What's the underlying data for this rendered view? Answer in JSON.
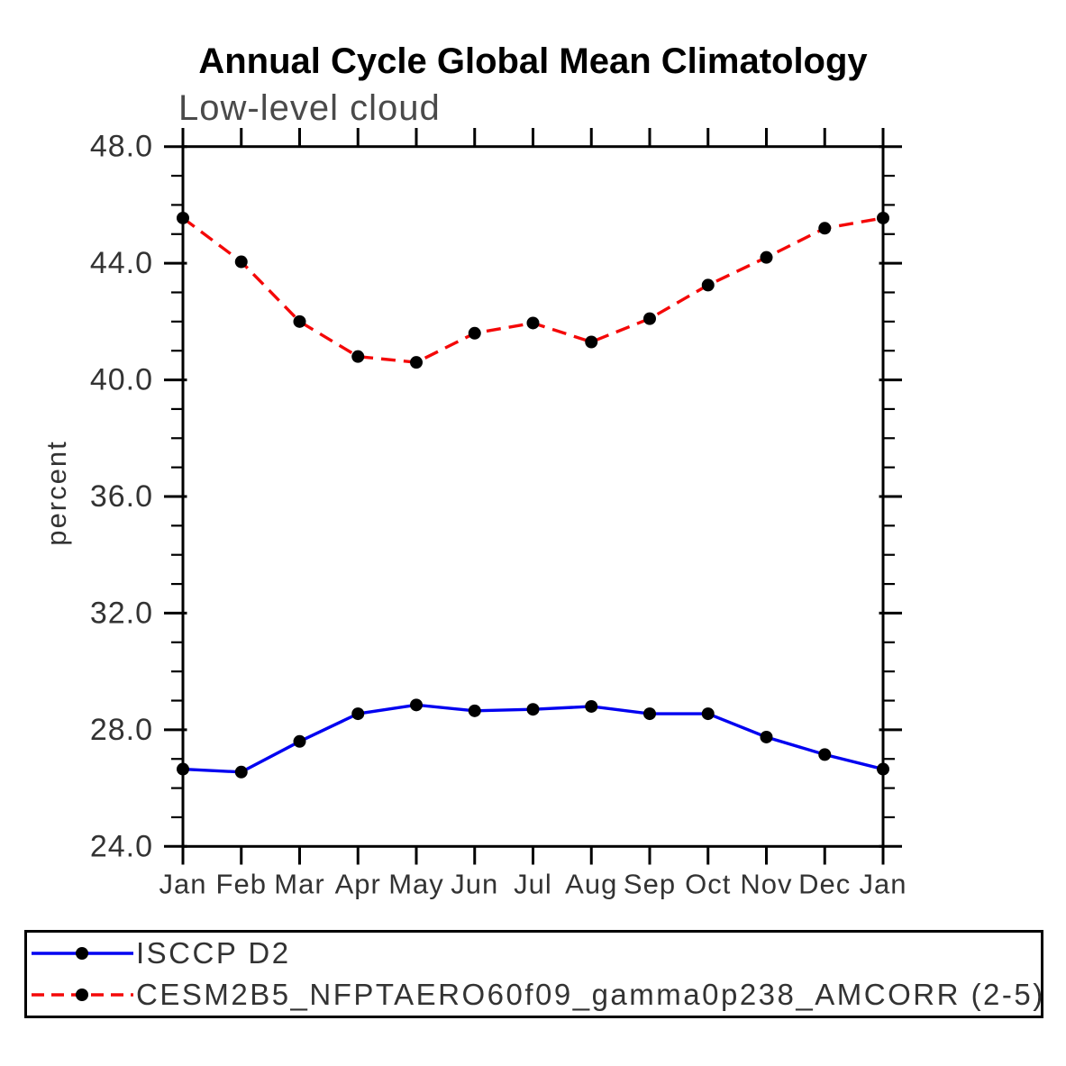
{
  "title": "Annual Cycle Global Mean Climatology",
  "subtitle": "Low-level cloud",
  "ylabel": "percent",
  "legend": {
    "position": "bottom-box",
    "entries": [
      {
        "label": "ISCCP D2",
        "line_color": "#0000f0",
        "line_style": "solid",
        "marker": "black-dot"
      },
      {
        "label": "CESM2B5_NFPTAERO60f09_gamma0p238_AMCORR (2-5)",
        "line_color": "#f40808",
        "line_style": "dashed",
        "marker": "black-dot"
      }
    ]
  },
  "chart_data": {
    "type": "line",
    "title": "Annual Cycle Global Mean Climatology",
    "subtitle": "Low-level cloud",
    "xlabel": "",
    "ylabel": "percent",
    "categories": [
      "Jan",
      "Feb",
      "Mar",
      "Apr",
      "May",
      "Jun",
      "Jul",
      "Aug",
      "Sep",
      "Oct",
      "Nov",
      "Dec",
      "Jan"
    ],
    "series": [
      {
        "name": "ISCCP D2",
        "color": "#0000f0",
        "style": "solid",
        "marker_color": "#000000",
        "values": [
          26.65,
          26.55,
          27.6,
          28.55,
          28.85,
          28.65,
          28.7,
          28.8,
          28.55,
          28.55,
          27.75,
          27.15,
          26.65
        ]
      },
      {
        "name": "CESM2B5_NFPTAERO60f09_gamma0p238_AMCORR (2-5)",
        "color": "#f40808",
        "style": "dashed",
        "marker_color": "#000000",
        "values": [
          45.55,
          44.05,
          42.0,
          40.8,
          40.6,
          41.6,
          41.95,
          41.3,
          42.1,
          43.25,
          44.2,
          45.2,
          45.55
        ]
      }
    ],
    "ylim": [
      24.0,
      48.0
    ],
    "ytick_major_interval": 4.0,
    "ytick_minor_interval": 1.0,
    "ytick_labels": [
      "24.0",
      "28.0",
      "32.0",
      "36.0",
      "40.0",
      "44.0",
      "48.0"
    ],
    "grid": false,
    "legend_position": "bottom-box",
    "axis_color": "#000000",
    "tick_label_color": "#333333"
  }
}
